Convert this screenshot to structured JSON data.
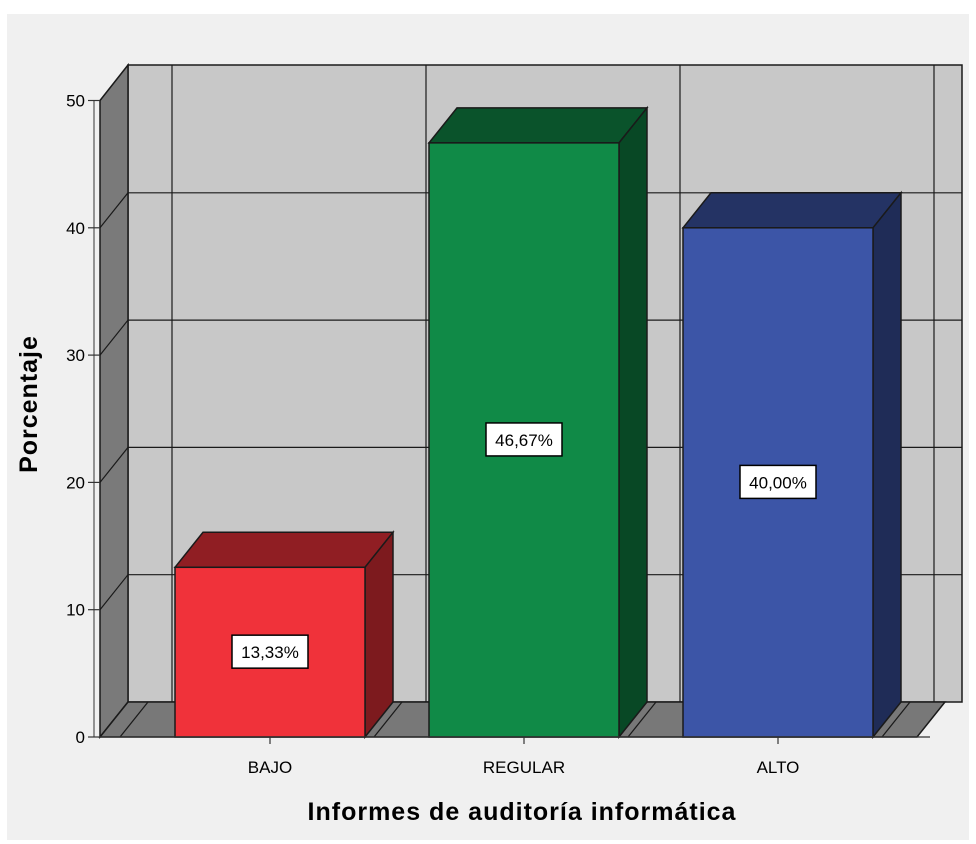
{
  "chart_data": {
    "type": "bar",
    "style": "3d",
    "categories": [
      "BAJO",
      "REGULAR",
      "ALTO"
    ],
    "values": [
      13.33,
      46.67,
      40.0
    ],
    "data_labels": [
      "13,33%",
      "46,67%",
      "40,00%"
    ],
    "colors": [
      "#f0323a",
      "#108a47",
      "#3c55a7"
    ],
    "xlabel": "Informes de auditoría informática",
    "ylabel": "Porcentaje",
    "ylim": [
      0,
      50
    ],
    "yticks": [
      0,
      10,
      20,
      30,
      40,
      50
    ],
    "ytick_labels": [
      "0",
      "10",
      "20",
      "30",
      "40",
      "50"
    ],
    "grid": true,
    "plot_background": "#c8c8c8",
    "floor_color": "#787878"
  }
}
